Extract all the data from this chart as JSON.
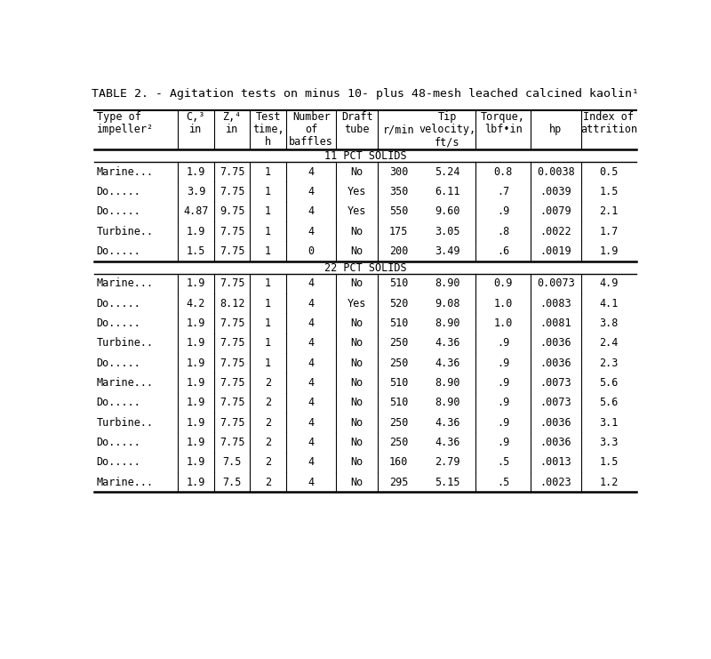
{
  "title": "TABLE 2. - Agitation tests on minus 10- plus 48-mesh leached calcined kaolin¹",
  "col_headers": [
    [
      "Type of",
      "C,³",
      "Z,⁴",
      "Test",
      "Number",
      "Draft",
      "",
      "Tip",
      "Torque,",
      "",
      "Index of"
    ],
    [
      "impeller²",
      "in",
      "in",
      "time,",
      "of",
      "tube",
      "r/min",
      "velocity,",
      "lbf•in",
      "hp",
      "attrition"
    ],
    [
      "",
      "",
      "",
      "h",
      "baffles",
      "",
      "",
      "ft/s",
      "",
      "",
      ""
    ]
  ],
  "section1_label": "11 PCT SOLIDS",
  "section2_label": "22 PCT SOLIDS",
  "col_widths_rel": [
    1.5,
    0.65,
    0.65,
    0.65,
    0.9,
    0.75,
    0.75,
    1.0,
    1.0,
    0.9,
    1.0
  ],
  "rows_11pct": [
    [
      "Marine...",
      "1.9",
      "7.75",
      "1",
      "4",
      "No",
      "300",
      "5.24",
      "0.8",
      "0.0038",
      "0.5"
    ],
    [
      "Do.....",
      "3.9",
      "7.75",
      "1",
      "4",
      "Yes",
      "350",
      "6.11",
      ".7",
      ".0039",
      "1.5"
    ],
    [
      "Do.....",
      "4.87",
      "9.75",
      "1",
      "4",
      "Yes",
      "550",
      "9.60",
      ".9",
      ".0079",
      "2.1"
    ],
    [
      "Turbine..",
      "1.9",
      "7.75",
      "1",
      "4",
      "No",
      "175",
      "3.05",
      ".8",
      ".0022",
      "1.7"
    ],
    [
      "Do.....",
      "1.5",
      "7.75",
      "1",
      "0",
      "No",
      "200",
      "3.49",
      ".6",
      ".0019",
      "1.9"
    ]
  ],
  "rows_22pct": [
    [
      "Marine...",
      "1.9",
      "7.75",
      "1",
      "4",
      "No",
      "510",
      "8.90",
      "0.9",
      "0.0073",
      "4.9"
    ],
    [
      "Do.....",
      "4.2",
      "8.12",
      "1",
      "4",
      "Yes",
      "520",
      "9.08",
      "1.0",
      ".0083",
      "4.1"
    ],
    [
      "Do.....",
      "1.9",
      "7.75",
      "1",
      "4",
      "No",
      "510",
      "8.90",
      "1.0",
      ".0081",
      "3.8"
    ],
    [
      "Turbine..",
      "1.9",
      "7.75",
      "1",
      "4",
      "No",
      "250",
      "4.36",
      ".9",
      ".0036",
      "2.4"
    ],
    [
      "Do.....",
      "1.9",
      "7.75",
      "1",
      "4",
      "No",
      "250",
      "4.36",
      ".9",
      ".0036",
      "2.3"
    ],
    [
      "Marine...",
      "1.9",
      "7.75",
      "2",
      "4",
      "No",
      "510",
      "8.90",
      ".9",
      ".0073",
      "5.6"
    ],
    [
      "Do.....",
      "1.9",
      "7.75",
      "2",
      "4",
      "No",
      "510",
      "8.90",
      ".9",
      ".0073",
      "5.6"
    ],
    [
      "Turbine..",
      "1.9",
      "7.75",
      "2",
      "4",
      "No",
      "250",
      "4.36",
      ".9",
      ".0036",
      "3.1"
    ],
    [
      "Do.....",
      "1.9",
      "7.75",
      "2",
      "4",
      "No",
      "250",
      "4.36",
      ".9",
      ".0036",
      "3.3"
    ],
    [
      "Do.....",
      "1.9",
      "7.5",
      "2",
      "4",
      "No",
      "160",
      "2.79",
      ".5",
      ".0013",
      "1.5"
    ],
    [
      "Marine...",
      "1.9",
      "7.5",
      "2",
      "4",
      "No",
      "295",
      "5.15",
      ".5",
      ".0023",
      "1.2"
    ]
  ],
  "vline_after": [
    0,
    1,
    2,
    3,
    4,
    5,
    7,
    8,
    9
  ],
  "font_size": 8.5,
  "title_font_size": 9.5,
  "bg_color": "#ffffff",
  "text_color": "#000000",
  "line_color": "#000000"
}
